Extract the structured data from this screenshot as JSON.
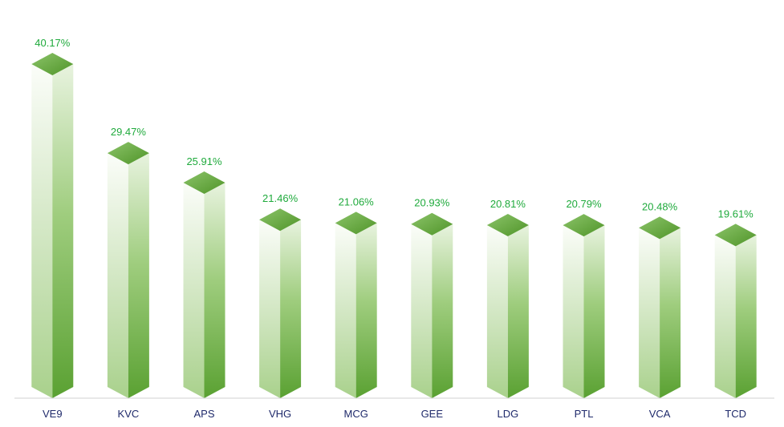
{
  "chart_data": {
    "type": "bar",
    "style": "3d-prism",
    "categories": [
      "VE9",
      "KVC",
      "APS",
      "VHG",
      "MCG",
      "GEE",
      "LDG",
      "PTL",
      "VCA",
      "TCD"
    ],
    "values": [
      40.17,
      29.47,
      25.91,
      21.46,
      21.06,
      20.93,
      20.81,
      20.79,
      20.48,
      19.61
    ],
    "value_labels": [
      "40.17%",
      "29.47%",
      "25.91%",
      "21.46%",
      "21.06%",
      "20.93%",
      "20.81%",
      "20.79%",
      "20.48%",
      "19.61%"
    ],
    "title": "",
    "xlabel": "",
    "ylabel": "",
    "ylim": [
      0,
      40.17
    ],
    "grid": false,
    "legend": "none"
  },
  "colors": {
    "bar_dark": "#5a9e2f",
    "bar_mid": "#8cc46a",
    "bar_light": "#f1f8ec",
    "top_face": "#6fb040",
    "value_label": "#1faa3c",
    "category_label": "#1f2a6b",
    "axis_line": "#d0d0d0"
  }
}
